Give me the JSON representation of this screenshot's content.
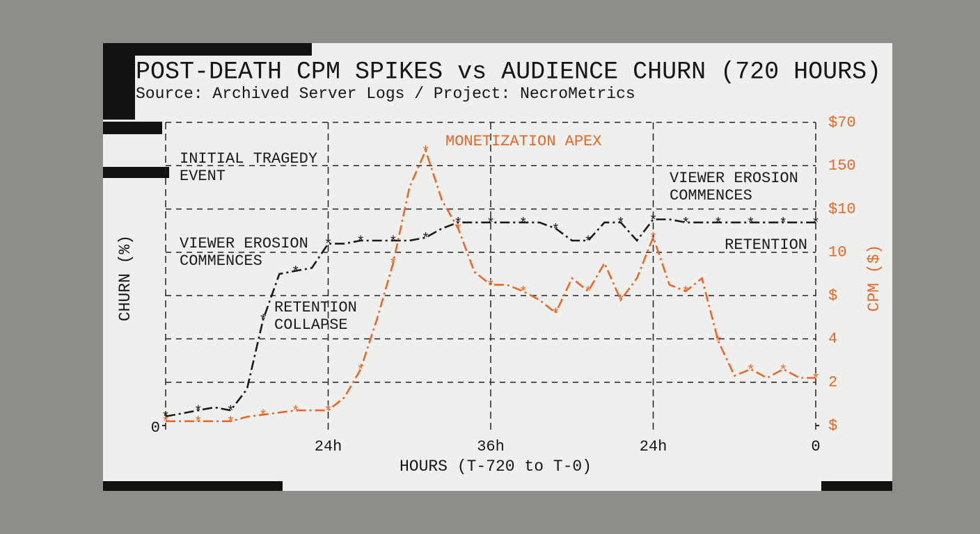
{
  "chart_data": {
    "type": "line",
    "title": "POST-DEATH CPM SPIKES vs AUDIENCE CHURN (720 HOURS)",
    "subtitle": "Source: Archived Server Logs / Project: NecroMetrics",
    "x_label": "HOURS (T-720 to T-0)",
    "y_label": "CHURN (%)",
    "y2_label": "CPM ($)",
    "categories": [
      null,
      null,
      null,
      null,
      null,
      null,
      null,
      null,
      null,
      null,
      "24h",
      null,
      null,
      null,
      null,
      null,
      null,
      null,
      null,
      null,
      "36h",
      null,
      null,
      null,
      null,
      null,
      null,
      null,
      null,
      null,
      "24h",
      null,
      null,
      null,
      null,
      null,
      null,
      null,
      null,
      null,
      "0"
    ],
    "ylim": [
      0,
      100
    ],
    "yticks": [
      0
    ],
    "y2lim": [
      0,
      14
    ],
    "y2ticks": [
      {
        "value": 0,
        "label": "$"
      },
      2,
      4,
      {
        "value": 6,
        "label": "$"
      },
      {
        "value": 8,
        "label": "10"
      },
      {
        "value": 10,
        "label": "$10"
      },
      {
        "value": 12,
        "label": "150"
      },
      {
        "value": 14,
        "label": "$70"
      }
    ],
    "grid": true,
    "series": [
      {
        "color": "#1a1a1a",
        "axis": "y",
        "values": [
          3,
          4,
          5,
          6,
          5,
          12,
          35,
          50,
          51,
          52,
          60,
          60,
          61,
          61,
          61,
          61,
          62,
          65,
          67,
          67,
          67,
          67,
          67,
          67,
          65,
          61,
          61,
          67,
          67,
          61,
          68,
          68,
          67,
          67,
          67,
          67,
          67,
          67,
          67,
          67,
          67
        ]
      },
      {
        "color": "#e8682a",
        "axis": "y2",
        "values": [
          0.2,
          0.2,
          0.2,
          0.2,
          0.2,
          0.4,
          0.5,
          0.6,
          0.7,
          0.7,
          0.7,
          1.3,
          2.6,
          4.9,
          7.5,
          11,
          12.7,
          10.4,
          9.1,
          7.1,
          6.5,
          6.5,
          6.2,
          5.8,
          5.2,
          6.8,
          6.2,
          7.5,
          5.8,
          6.8,
          8.7,
          6.5,
          6.2,
          6.8,
          3.9,
          2.3,
          2.6,
          2.2,
          2.6,
          2.2,
          2.2
        ]
      }
    ],
    "annotations": [
      {
        "lines": [
          "MONETIZATION APEX"
        ],
        "color": "#e8682a"
      },
      {
        "lines": [
          "INITIAL TRAGEDY",
          "EVENT"
        ],
        "color": "#1a1a1a"
      },
      {
        "lines": [
          "VIEWER EROSION",
          "COMMENCES"
        ],
        "color": "#1a1a1a"
      },
      {
        "lines": [
          "VIEWER EROSION",
          "COMMENCES"
        ],
        "color": "#1a1a1a"
      },
      {
        "lines": [
          "RETENTION",
          "COLLAPSE"
        ],
        "color": "#1a1a1a"
      },
      {
        "lines": [
          "RETENTION"
        ],
        "color": "#1a1a1a"
      }
    ]
  }
}
